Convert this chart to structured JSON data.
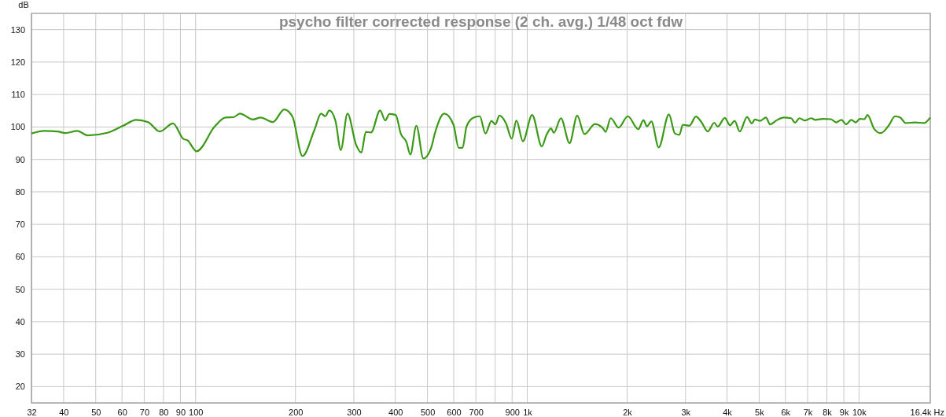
{
  "chart_data": {
    "type": "line",
    "title": "psycho filter corrected response (2 ch. avg.) 1/48 oct fdw",
    "ylabel": "dB",
    "log": "x",
    "grid": true,
    "marker": "none",
    "line_style": "solid",
    "xlim": [
      32,
      16400
    ],
    "xticks": [
      32,
      40,
      50,
      60,
      70,
      80,
      90,
      100,
      200,
      300,
      400,
      500,
      600,
      700,
      {
        "value": 800,
        "label": null
      },
      900,
      {
        "value": 1000,
        "label": "1k"
      },
      {
        "value": 2000,
        "label": "2k"
      },
      {
        "value": 3000,
        "label": "3k"
      },
      {
        "value": 4000,
        "label": "4k"
      },
      {
        "value": 5000,
        "label": "5k"
      },
      {
        "value": 6000,
        "label": "6k"
      },
      {
        "value": 7000,
        "label": "7k"
      },
      {
        "value": 8000,
        "label": "8k"
      },
      {
        "value": 9000,
        "label": "9k"
      },
      {
        "value": 10000,
        "label": "10k"
      },
      {
        "value": 16400,
        "label": "16.4k Hz"
      }
    ],
    "ylim": [
      15,
      135
    ],
    "yticks": [
      20,
      30,
      40,
      50,
      60,
      70,
      80,
      90,
      100,
      110,
      120,
      130
    ],
    "series": [
      {
        "color": "#3a9a16",
        "x": [
          32,
          35,
          38.4,
          40.5,
          44,
          47.3,
          54.2,
          60.5,
          66.2,
          71.9,
          78,
          85.5,
          91.9,
          94.5,
          100.7,
          114.3,
          123,
          130,
          136,
          149,
          157,
          171,
          185,
          196,
          210,
          228,
          239,
          246,
          253,
          264,
          274,
          287,
          305,
          316,
          326,
          338,
          360,
          373,
          384,
          401,
          416,
          432,
          444,
          463,
          486,
          513,
          527,
          562,
          599,
          621,
          638,
          656,
          687,
          719,
          748,
          780,
          801,
          824,
          862,
          898,
          927,
          970,
          1034,
          1106,
          1143,
          1179,
          1202,
          1263,
          1341,
          1414,
          1487,
          1600,
          1690,
          1721,
          1785,
          1885,
          2009,
          2161,
          2240,
          2294,
          2366,
          2490,
          2673,
          2786,
          2875,
          2943,
          3081,
          3223,
          3344,
          3499,
          3661,
          3750,
          3939,
          4083,
          4219,
          4369,
          4597,
          4750,
          4855,
          5035,
          5240,
          5394,
          5636,
          5931,
          6241,
          6414,
          6616,
          6858,
          7180,
          7379,
          7793,
          8231,
          8531,
          8850,
          9144,
          9484,
          9779,
          10050,
          10380,
          10610,
          11110,
          11630,
          12280,
          12850,
          13330,
          13820,
          14730,
          15700,
          16400
        ],
        "values": [
          98.0,
          98.8,
          98.6,
          98.1,
          98.8,
          97.4,
          98.2,
          100.4,
          102.2,
          101.5,
          98.6,
          101.1,
          96.3,
          95.9,
          92.5,
          100.2,
          102.9,
          103.0,
          104.1,
          102.3,
          102.9,
          101.5,
          105.4,
          103.1,
          91.0,
          99.0,
          104.1,
          103.3,
          105.1,
          101.9,
          92.9,
          104.1,
          94.4,
          92.1,
          98.5,
          98.3,
          105.1,
          102.0,
          104.0,
          103.7,
          97.8,
          95.4,
          91.5,
          100.4,
          90.3,
          93.6,
          98.2,
          104.1,
          100.7,
          93.6,
          93.6,
          100.2,
          102.8,
          103.3,
          98.0,
          101.9,
          100.8,
          103.5,
          101.2,
          96.4,
          102.0,
          95.6,
          103.7,
          94.0,
          97.6,
          99.6,
          98.2,
          102.7,
          95.0,
          103.5,
          97.8,
          100.9,
          99.6,
          98.5,
          102.7,
          99.8,
          103.3,
          99.3,
          102.1,
          100.2,
          101.7,
          93.7,
          103.9,
          98.0,
          97.6,
          100.7,
          100.4,
          103.2,
          101.6,
          98.6,
          101.3,
          100.1,
          102.8,
          100.5,
          101.9,
          98.6,
          103.1,
          101.1,
          102.3,
          101.9,
          102.9,
          100.8,
          102.0,
          102.9,
          102.7,
          101.3,
          102.7,
          102.0,
          102.7,
          102.2,
          102.5,
          102.4,
          101.4,
          102.2,
          100.8,
          102.2,
          101.4,
          102.5,
          102.4,
          103.7,
          99.4,
          98.1,
          100.4,
          103.3,
          102.9,
          101.2,
          101.4,
          101.2,
          102.9
        ]
      }
    ]
  }
}
